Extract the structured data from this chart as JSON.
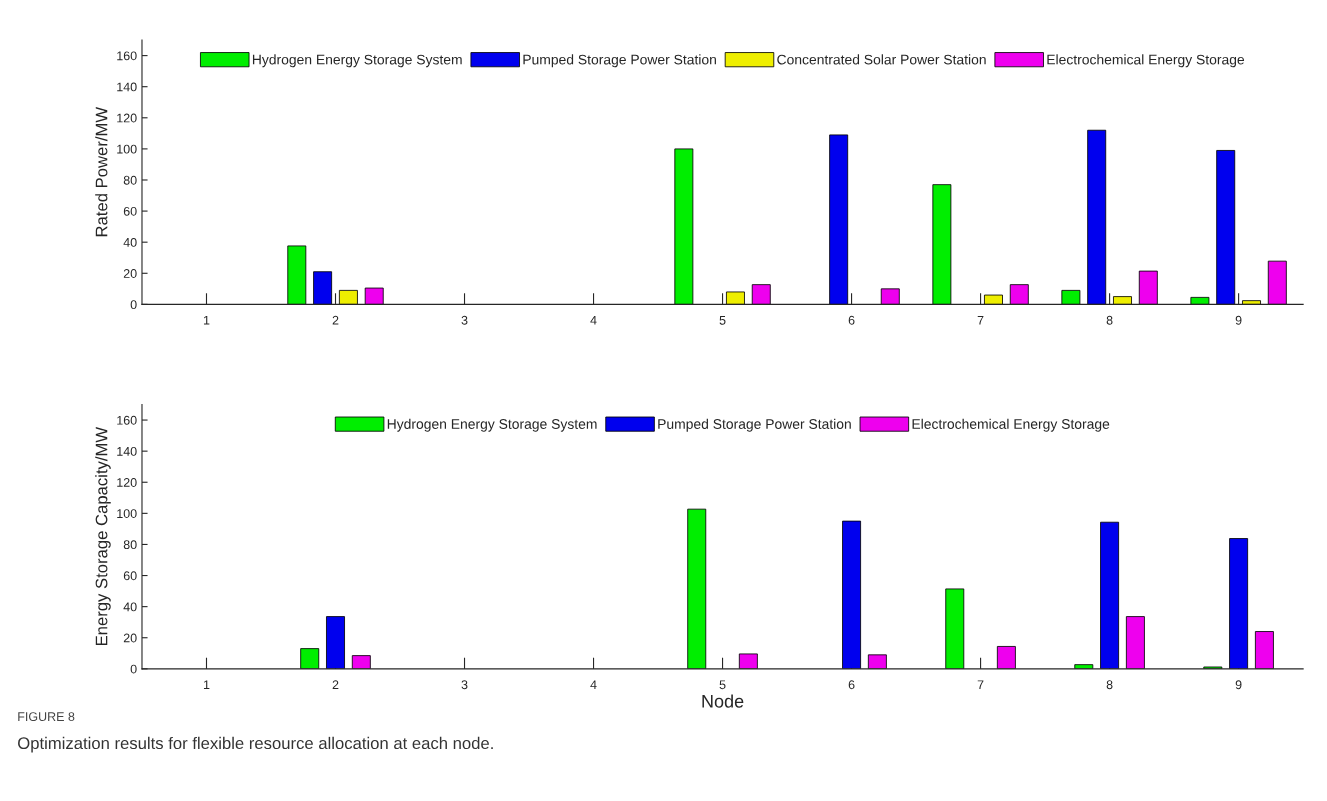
{
  "chart_data": [
    {
      "type": "bar",
      "ylabel": "Rated Power/MW",
      "categories": [
        "1",
        "2",
        "3",
        "4",
        "5",
        "6",
        "7",
        "8",
        "9"
      ],
      "ylim": [
        0,
        170
      ],
      "yticks": [
        0,
        20,
        40,
        60,
        80,
        100,
        120,
        140,
        160
      ],
      "grid": false,
      "legend": "top",
      "series": [
        {
          "name": "Hydrogen Energy Storage System",
          "color": "#00ee00",
          "values": [
            null,
            37.6,
            null,
            null,
            100,
            null,
            77,
            9,
            4.5
          ]
        },
        {
          "name": "Pumped Storage Power Station",
          "color": "#0000ee",
          "values": [
            null,
            21,
            null,
            null,
            null,
            109,
            null,
            112,
            99
          ]
        },
        {
          "name": "Concentrated Solar Power Station",
          "color": "#eeee00",
          "values": [
            null,
            9,
            null,
            null,
            8,
            null,
            6,
            5,
            2.4
          ]
        },
        {
          "name": "Electrochemical Energy Storage",
          "color": "#ee00ee",
          "values": [
            null,
            10.5,
            null,
            null,
            12.7,
            10,
            12.7,
            21.4,
            27.8
          ]
        }
      ]
    },
    {
      "type": "bar",
      "ylabel": "Energy Storage Capacity/MW",
      "xlabel": "Node",
      "categories": [
        "1",
        "2",
        "3",
        "4",
        "5",
        "6",
        "7",
        "8",
        "9"
      ],
      "ylim": [
        0,
        170
      ],
      "yticks": [
        0,
        20,
        40,
        60,
        80,
        100,
        120,
        140,
        160
      ],
      "grid": false,
      "legend": "top",
      "series": [
        {
          "name": "Hydrogen Energy Storage System",
          "color": "#00ee00",
          "values": [
            null,
            13,
            null,
            null,
            102.7,
            null,
            51.4,
            2.7,
            1.2
          ]
        },
        {
          "name": "Pumped Storage Power Station",
          "color": "#0000ee",
          "values": [
            null,
            33.6,
            null,
            null,
            null,
            95,
            null,
            94.3,
            83.8
          ]
        },
        {
          "name": "Electrochemical Energy Storage",
          "color": "#ee00ee",
          "values": [
            null,
            8.5,
            null,
            null,
            9.6,
            9,
            14.4,
            33.6,
            24
          ]
        }
      ],
      "annotations": [
        "FIGURE 8",
        "Optimization results for flexible resource allocation at each node."
      ]
    }
  ]
}
